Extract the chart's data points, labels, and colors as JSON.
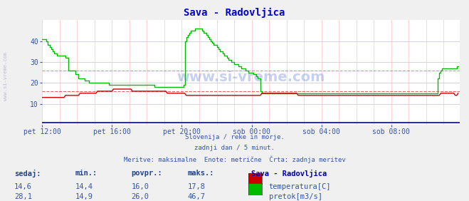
{
  "title": "Sava - Radovljica",
  "title_color": "#0000cc",
  "bg_color": "#f0f0f0",
  "plot_bg_color": "#ffffff",
  "grid_v_color": "#ffcccc",
  "grid_h_color": "#ccccdd",
  "xlabel_color": "#3355aa",
  "text_color": "#3355aa",
  "watermark": "www.si-vreme.com",
  "subtitle_lines": [
    "Slovenija / reke in morje.",
    "zadnji dan / 5 minut.",
    "Meritve: maksimalne  Enote: metrične  Črta: zadnja meritev"
  ],
  "xtick_labels": [
    "pet 12:00",
    "pet 16:00",
    "pet 20:00",
    "sob 00:00",
    "sob 04:00",
    "sob 08:00"
  ],
  "xtick_positions": [
    0,
    48,
    96,
    144,
    192,
    240
  ],
  "ytick_labels": [
    "10",
    "20",
    "30",
    "40"
  ],
  "ytick_values": [
    10,
    20,
    30,
    40
  ],
  "ymin": 0,
  "ymax": 50,
  "xmin": 0,
  "xmax": 287,
  "temp_color": "#cc0000",
  "flow_color": "#00bb00",
  "baseline_color": "#0000cc",
  "avg_temp_value": 16.0,
  "avg_flow_value": 26.0,
  "legend_header": "Sava - Radovljica",
  "legend_items": [
    {
      "label": "temperatura[C]",
      "color": "#cc0000"
    },
    {
      "label": "pretok[m3/s]",
      "color": "#00bb00"
    }
  ],
  "table_headers": [
    "sedaj:",
    "min.:",
    "povpr.:",
    "maks.:"
  ],
  "table_rows": [
    {
      "sedaj": "14,6",
      "min": "14,4",
      "povpr": "16,0",
      "maks": "17,8"
    },
    {
      "sedaj": "28,1",
      "min": "14,9",
      "povpr": "26,0",
      "maks": "46,7"
    }
  ],
  "temp_data": [
    13,
    13,
    13,
    13,
    13,
    13,
    13,
    13,
    13,
    13,
    13,
    13,
    13,
    13,
    13,
    13,
    14,
    14,
    14,
    14,
    14,
    14,
    14,
    14,
    14,
    14,
    15,
    15,
    15,
    15,
    15,
    15,
    15,
    15,
    15,
    15,
    15,
    15,
    16,
    16,
    16,
    16,
    16,
    16,
    16,
    16,
    16,
    16,
    16,
    17,
    17,
    17,
    17,
    17,
    17,
    17,
    17,
    17,
    17,
    17,
    17,
    17,
    16,
    16,
    16,
    16,
    16,
    16,
    16,
    16,
    16,
    16,
    16,
    16,
    16,
    16,
    16,
    16,
    16,
    16,
    16,
    16,
    16,
    16,
    16,
    16,
    15,
    15,
    15,
    15,
    15,
    15,
    15,
    15,
    15,
    15,
    15,
    15,
    15,
    14,
    14,
    14,
    14,
    14,
    14,
    14,
    14,
    14,
    14,
    14,
    14,
    14,
    14,
    14,
    14,
    14,
    14,
    14,
    14,
    14,
    14,
    14,
    14,
    14,
    14,
    14,
    14,
    14,
    14,
    14,
    14,
    14,
    14,
    14,
    14,
    14,
    14,
    14,
    14,
    14,
    14,
    14,
    14,
    14,
    14,
    14,
    14,
    14,
    14,
    14,
    14,
    15,
    15,
    15,
    15,
    15,
    15,
    15,
    15,
    15,
    15,
    15,
    15,
    15,
    15,
    15,
    15,
    15,
    15,
    15,
    15,
    15,
    15,
    15,
    15,
    15,
    14,
    14,
    14,
    14,
    14,
    14,
    14,
    14,
    14,
    14,
    14,
    14,
    14,
    14,
    14,
    14,
    14,
    14,
    14,
    14,
    14,
    14,
    14,
    14,
    14,
    14,
    14,
    14,
    14,
    14,
    14,
    14,
    14,
    14,
    14,
    14,
    14,
    14,
    14,
    14,
    14,
    14,
    14,
    14,
    14,
    14,
    14,
    14,
    14,
    14,
    14,
    14,
    14,
    14,
    14,
    14,
    14,
    14,
    14,
    14,
    14,
    14,
    14,
    14,
    14,
    14,
    14,
    14,
    14,
    14,
    14,
    14,
    14,
    14,
    14,
    14,
    14,
    14,
    14,
    14,
    14,
    14,
    14,
    14,
    14,
    14,
    14,
    14,
    14,
    14,
    14,
    14,
    14,
    14,
    14,
    14,
    14,
    14,
    15,
    15,
    15,
    15,
    15,
    15,
    15,
    15,
    15,
    15,
    14,
    14,
    15
  ],
  "flow_data": [
    41,
    41,
    41,
    40,
    38,
    37,
    36,
    35,
    34,
    34,
    33,
    33,
    33,
    33,
    33,
    33,
    32,
    32,
    26,
    26,
    26,
    26,
    26,
    24,
    24,
    22,
    22,
    22,
    22,
    21,
    21,
    21,
    20,
    20,
    20,
    20,
    20,
    20,
    20,
    20,
    20,
    20,
    20,
    20,
    20,
    20,
    19,
    19,
    19,
    19,
    19,
    19,
    19,
    19,
    19,
    19,
    19,
    19,
    19,
    19,
    19,
    19,
    19,
    19,
    19,
    19,
    19,
    19,
    19,
    19,
    19,
    19,
    19,
    19,
    19,
    19,
    19,
    18,
    18,
    18,
    18,
    18,
    18,
    18,
    18,
    18,
    18,
    18,
    18,
    18,
    18,
    18,
    18,
    18,
    18,
    18,
    18,
    19,
    40,
    42,
    43,
    44,
    45,
    45,
    45,
    46,
    46,
    46,
    46,
    46,
    45,
    44,
    44,
    43,
    42,
    41,
    40,
    39,
    38,
    38,
    37,
    36,
    35,
    35,
    34,
    33,
    33,
    32,
    31,
    31,
    30,
    30,
    29,
    29,
    29,
    28,
    28,
    27,
    27,
    27,
    26,
    26,
    25,
    25,
    25,
    24,
    24,
    23,
    22,
    22,
    16,
    15,
    15,
    15,
    15,
    15,
    15,
    15,
    15,
    15,
    15,
    15,
    15,
    15,
    15,
    15,
    15,
    15,
    15,
    15,
    15,
    15,
    15,
    15,
    15,
    15,
    15,
    15,
    15,
    15,
    15,
    15,
    15,
    15,
    15,
    15,
    15,
    15,
    15,
    15,
    15,
    15,
    15,
    15,
    15,
    15,
    15,
    15,
    15,
    15,
    15,
    15,
    15,
    15,
    15,
    15,
    15,
    15,
    15,
    15,
    15,
    15,
    15,
    15,
    15,
    15,
    15,
    15,
    15,
    15,
    15,
    15,
    15,
    15,
    15,
    15,
    15,
    15,
    15,
    15,
    15,
    15,
    15,
    15,
    15,
    15,
    15,
    15,
    15,
    15,
    15,
    15,
    15,
    15,
    15,
    15,
    15,
    15,
    15,
    15,
    15,
    15,
    15,
    15,
    15,
    15,
    15,
    15,
    15,
    15,
    15,
    15,
    15,
    15,
    15,
    15,
    15,
    15,
    15,
    15,
    15,
    15,
    22,
    25,
    26,
    27,
    27,
    27,
    27,
    27,
    27,
    27,
    27,
    27,
    27,
    28,
    28
  ]
}
